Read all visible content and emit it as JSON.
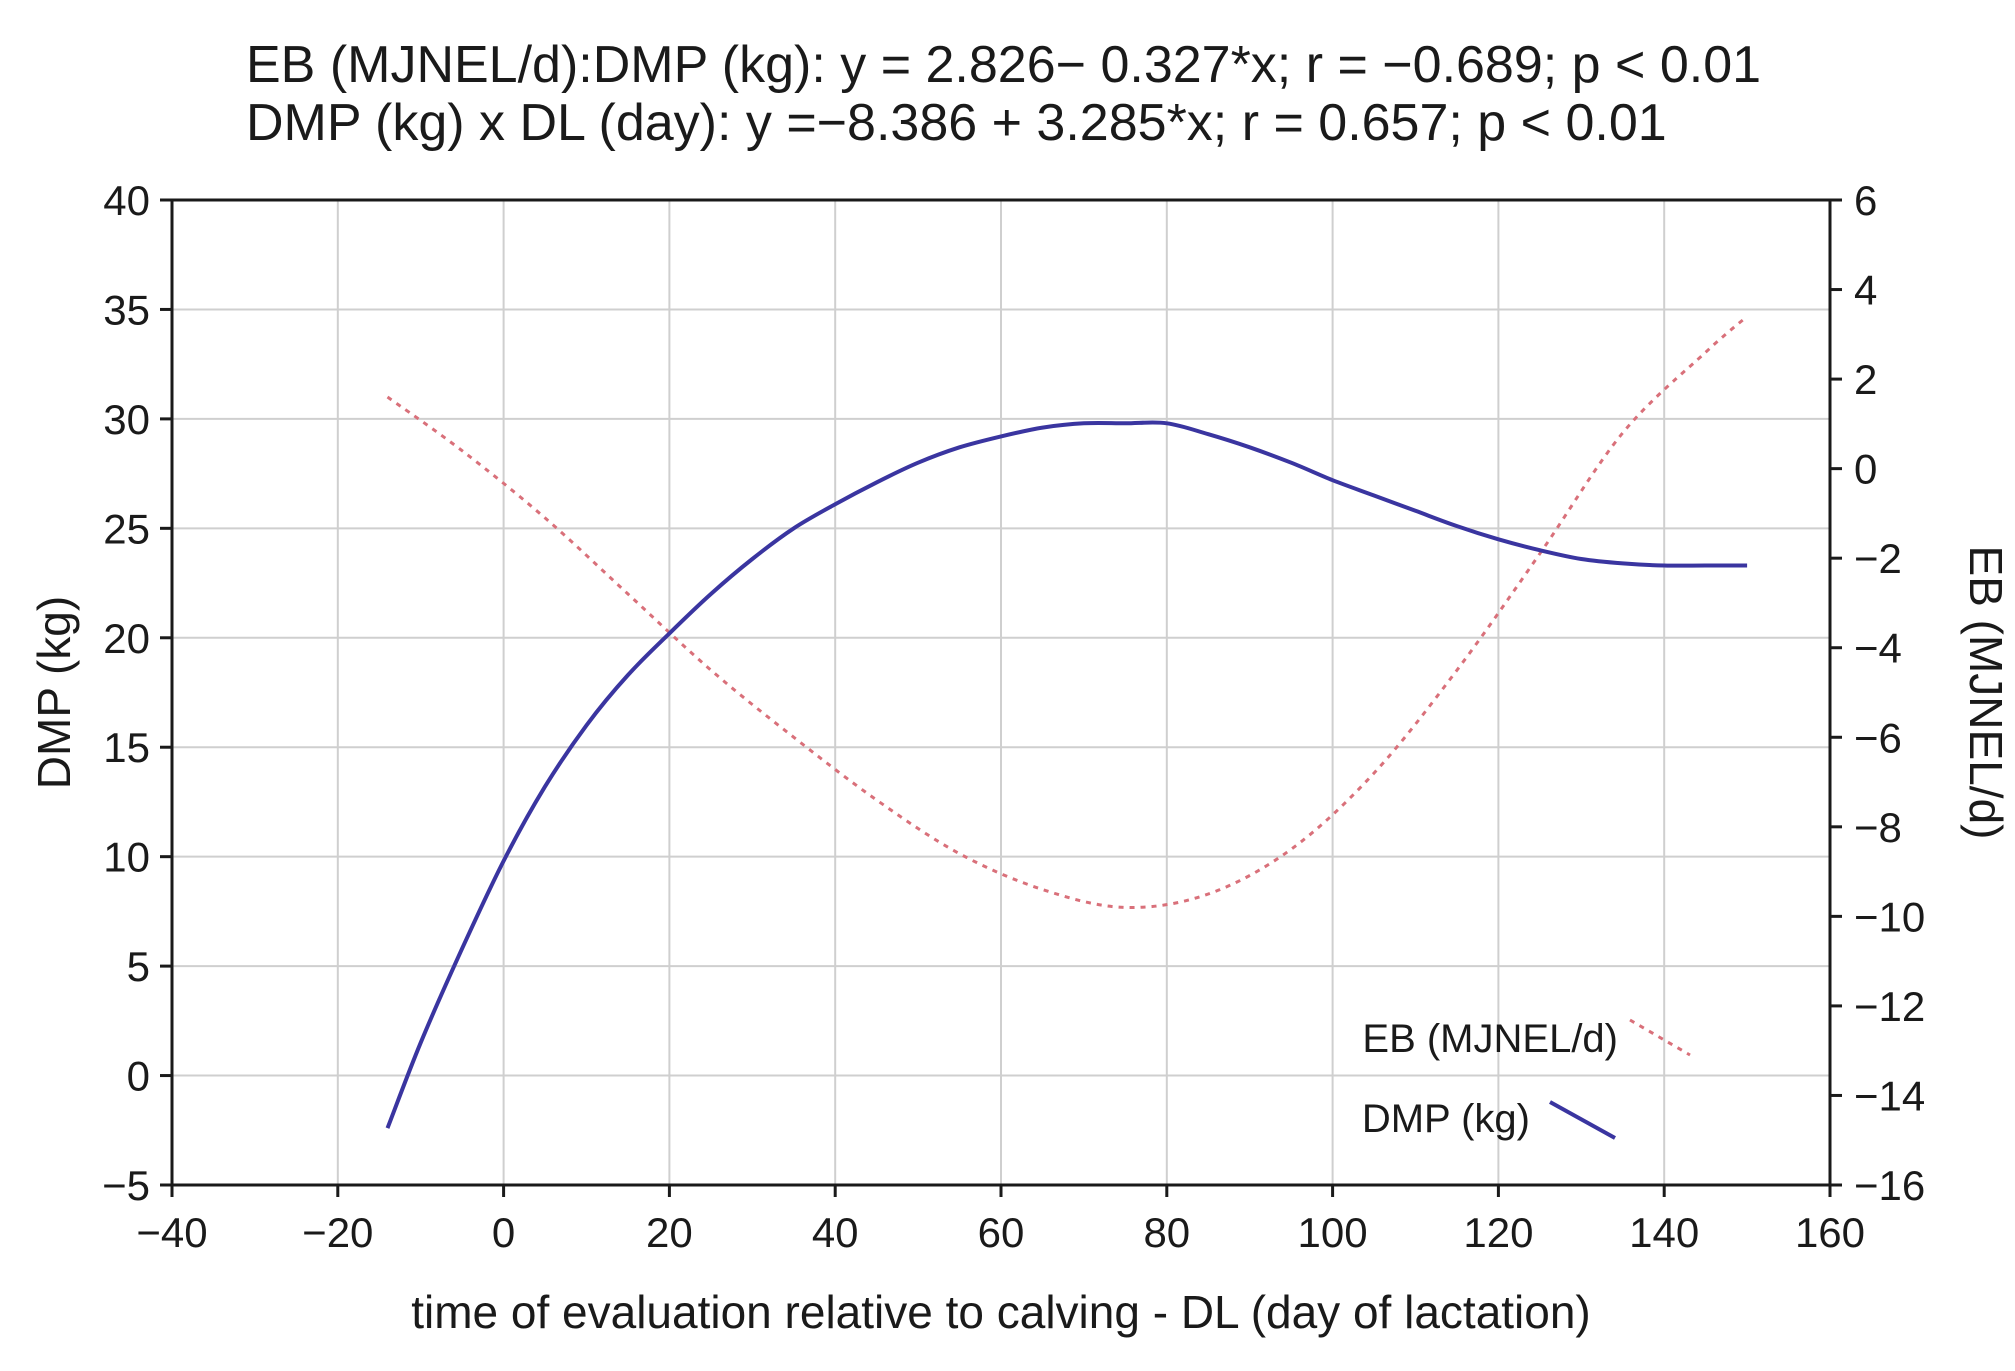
{
  "chart_data": {
    "type": "line",
    "title_lines": [
      "EB (MJNEL/d):DMP (kg): y = 2.826− 0.327*x; r = −0.689; p < 0.01",
      "DMP (kg) x DL (day): y =−8.386 + 3.285*x; r = 0.657; p < 0.01"
    ],
    "xlabel": "time of evaluation relative to calving - DL (day of lactation)",
    "ylabel_left": "DMP (kg)",
    "ylabel_right": "EB (MJNEL/d)",
    "xlim": [
      -40,
      160
    ],
    "ylim_left": [
      -5,
      40
    ],
    "ylim_right": [
      -16,
      6
    ],
    "x_ticks": [
      -40,
      -20,
      0,
      20,
      40,
      60,
      80,
      100,
      120,
      140,
      160
    ],
    "x_tick_labels": [
      "−40",
      "−20",
      "0",
      "20",
      "40",
      "60",
      "80",
      "100",
      "120",
      "140",
      "160"
    ],
    "y_left_ticks": [
      -5,
      0,
      5,
      10,
      15,
      20,
      25,
      30,
      35,
      40
    ],
    "y_left_tick_labels": [
      "−5",
      "0",
      "5",
      "10",
      "15",
      "20",
      "25",
      "30",
      "35",
      "40"
    ],
    "y_right_ticks": [
      -16,
      -14,
      -12,
      -10,
      -8,
      -6,
      -4,
      -2,
      0,
      2,
      4,
      6
    ],
    "y_right_tick_labels": [
      "−16",
      "−14",
      "−12",
      "−10",
      "−8",
      "−6",
      "−4",
      "−2",
      "0",
      "2",
      "4",
      "6"
    ],
    "grid": true,
    "legend_position": "bottom-right",
    "series": [
      {
        "name": "EB (MJNEL/d)",
        "axis": "right",
        "style": "dotted",
        "color": "#d9707a",
        "x": [
          -14,
          -5,
          5,
          15,
          25,
          35,
          45,
          55,
          65,
          75,
          85,
          95,
          105,
          115,
          125,
          135,
          145,
          150
        ],
        "y": [
          1.6,
          0.4,
          -1.1,
          -2.8,
          -4.5,
          -6.0,
          -7.4,
          -8.6,
          -9.4,
          -9.8,
          -9.5,
          -8.5,
          -6.8,
          -4.5,
          -1.9,
          0.8,
          2.6,
          3.4
        ]
      },
      {
        "name": "DMP (kg)",
        "axis": "left",
        "style": "solid",
        "color": "#3a35a0",
        "x": [
          -14,
          -10,
          -5,
          0,
          5,
          10,
          15,
          20,
          25,
          30,
          35,
          40,
          45,
          50,
          55,
          60,
          65,
          70,
          75,
          80,
          85,
          90,
          95,
          100,
          105,
          110,
          115,
          120,
          125,
          130,
          135,
          140,
          145,
          150
        ],
        "y": [
          -2.4,
          1.5,
          5.8,
          9.8,
          13.2,
          16.0,
          18.3,
          20.2,
          22.0,
          23.6,
          25.0,
          26.1,
          27.1,
          28.0,
          28.7,
          29.2,
          29.6,
          29.8,
          29.8,
          29.8,
          29.3,
          28.7,
          28.0,
          27.2,
          26.5,
          25.8,
          25.1,
          24.5,
          24.0,
          23.6,
          23.4,
          23.3,
          23.3,
          23.3
        ]
      }
    ]
  }
}
